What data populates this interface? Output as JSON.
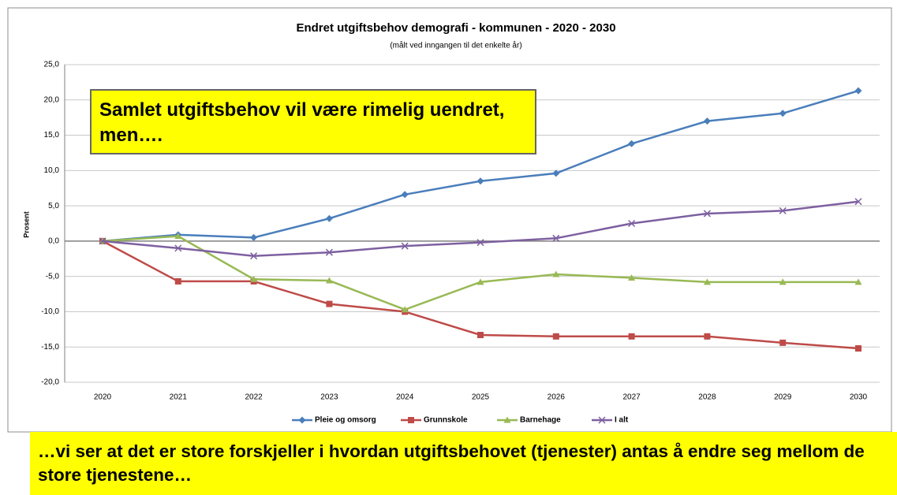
{
  "chart_data": {
    "type": "line",
    "title": "Endret utgiftsbehov demografi - kommunen - 2020 - 2030",
    "subtitle": "(målt ved inngangen til det enkelte år)",
    "y_label": "Prosent",
    "categories": [
      "2020",
      "2021",
      "2022",
      "2023",
      "2024",
      "2025",
      "2026",
      "2027",
      "2028",
      "2029",
      "2030"
    ],
    "series": [
      {
        "name": "Pleie og omsorg",
        "color": "#4a7ebb",
        "marker": "diamond",
        "values": [
          0,
          0.9,
          0.5,
          3.2,
          6.6,
          8.5,
          9.6,
          13.8,
          17.0,
          18.1,
          21.3
        ]
      },
      {
        "name": "Grunnskole",
        "color": "#be4b48",
        "marker": "square",
        "values": [
          0,
          -5.7,
          -5.7,
          -8.9,
          -10.0,
          -13.3,
          -13.5,
          -13.5,
          -13.5,
          -14.4,
          -15.2
        ]
      },
      {
        "name": "Barnehage",
        "color": "#98b954",
        "marker": "triangle",
        "values": [
          0,
          0.7,
          -5.4,
          -5.6,
          -9.7,
          -5.8,
          -4.7,
          -5.2,
          -5.8,
          -5.8,
          -5.8
        ]
      },
      {
        "name": "I alt",
        "color": "#7d60a0",
        "marker": "x",
        "values": [
          0,
          -1.0,
          -2.1,
          -1.6,
          -0.7,
          -0.2,
          0.4,
          2.5,
          3.9,
          4.3,
          5.6
        ]
      }
    ],
    "ylim": [
      -20,
      25
    ],
    "yticks": [
      {
        "value": -20,
        "label": "-20,0"
      },
      {
        "value": -15,
        "label": "-15,0"
      },
      {
        "value": -10,
        "label": "-10,0"
      },
      {
        "value": -5,
        "label": "-5,0"
      },
      {
        "value": 0,
        "label": "0,0"
      },
      {
        "value": 5,
        "label": "5,0"
      },
      {
        "value": 10,
        "label": "10,0"
      },
      {
        "value": 15,
        "label": "15,0"
      },
      {
        "value": 20,
        "label": "20,0"
      },
      {
        "value": 25,
        "label": "25,0"
      }
    ],
    "grid": true,
    "legend": "bottom",
    "annotations": [
      "Samlet utgiftsbehov vil være rimelig uendret, men….",
      "…vi ser at det er store forskjeller i hvordan utgiftsbehovet (tjenester) antas å endre seg mellom de store tjenestene…"
    ]
  }
}
